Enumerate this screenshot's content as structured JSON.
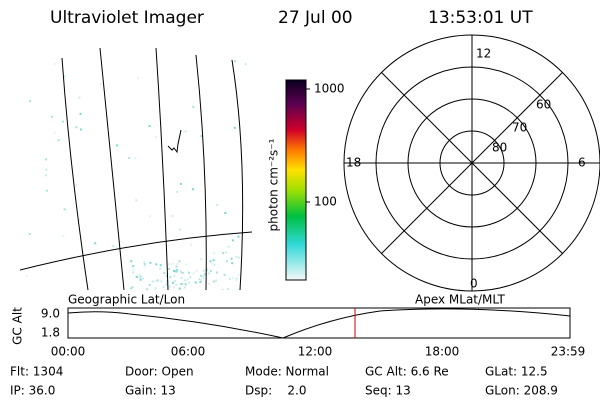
{
  "header": {
    "instrument": "Ultraviolet Imager",
    "date": "27 Jul 00",
    "time": "13:53:01 UT"
  },
  "colorbar": {
    "label": "photon cm⁻²s⁻¹",
    "ticks": [
      "1000",
      "100"
    ]
  },
  "polar": {
    "mlt_labels": [
      "12",
      "6",
      "0",
      "18"
    ],
    "mlat_labels": [
      "60",
      "70",
      "80"
    ]
  },
  "altitude_plot": {
    "left_label": "Geographic Lat/Lon",
    "right_label": "Apex MLat/MLT",
    "y_label": "GC Alt",
    "y_ticks": [
      "9.0",
      "1.8"
    ],
    "x_ticks": [
      "00:00",
      "06:00",
      "12:00",
      "18:00",
      "23:59"
    ]
  },
  "status": {
    "rows": [
      [
        "Flt: 1304",
        "Door: Open",
        "Mode: Normal",
        "GC Alt: 6.6 Re",
        "GLat: 12.5"
      ],
      [
        "IP: 36.0",
        "Gain: 13",
        "Dsp:    2.0",
        "Seq: 13",
        "GLon: 208.9"
      ]
    ]
  }
}
